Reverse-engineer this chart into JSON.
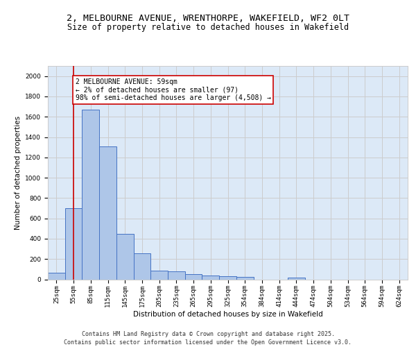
{
  "title_line1": "2, MELBOURNE AVENUE, WRENTHORPE, WAKEFIELD, WF2 0LT",
  "title_line2": "Size of property relative to detached houses in Wakefield",
  "xlabel": "Distribution of detached houses by size in Wakefield",
  "ylabel": "Number of detached properties",
  "categories": [
    "25sqm",
    "55sqm",
    "85sqm",
    "115sqm",
    "145sqm",
    "175sqm",
    "205sqm",
    "235sqm",
    "265sqm",
    "295sqm",
    "325sqm",
    "354sqm",
    "384sqm",
    "414sqm",
    "444sqm",
    "474sqm",
    "504sqm",
    "534sqm",
    "564sqm",
    "594sqm",
    "624sqm"
  ],
  "values": [
    65,
    700,
    1670,
    1310,
    445,
    255,
    85,
    80,
    50,
    40,
    30,
    25,
    0,
    0,
    20,
    0,
    0,
    0,
    0,
    0,
    0
  ],
  "bar_color": "#aec6e8",
  "bar_edge_color": "#4472c4",
  "vline_x": 1,
  "vline_color": "#cc0000",
  "annotation_text": "2 MELBOURNE AVENUE: 59sqm\n← 2% of detached houses are smaller (97)\n98% of semi-detached houses are larger (4,508) →",
  "annotation_box_color": "#ffffff",
  "annotation_box_edge_color": "#cc0000",
  "ylim": [
    0,
    2100
  ],
  "yticks": [
    0,
    200,
    400,
    600,
    800,
    1000,
    1200,
    1400,
    1600,
    1800,
    2000
  ],
  "grid_color": "#cccccc",
  "background_color": "#dce9f7",
  "footer_text": "Contains HM Land Registry data © Crown copyright and database right 2025.\nContains public sector information licensed under the Open Government Licence v3.0.",
  "title_fontsize": 9.5,
  "subtitle_fontsize": 8.5,
  "axis_label_fontsize": 7.5,
  "tick_fontsize": 6.5,
  "annotation_fontsize": 7,
  "footer_fontsize": 6
}
